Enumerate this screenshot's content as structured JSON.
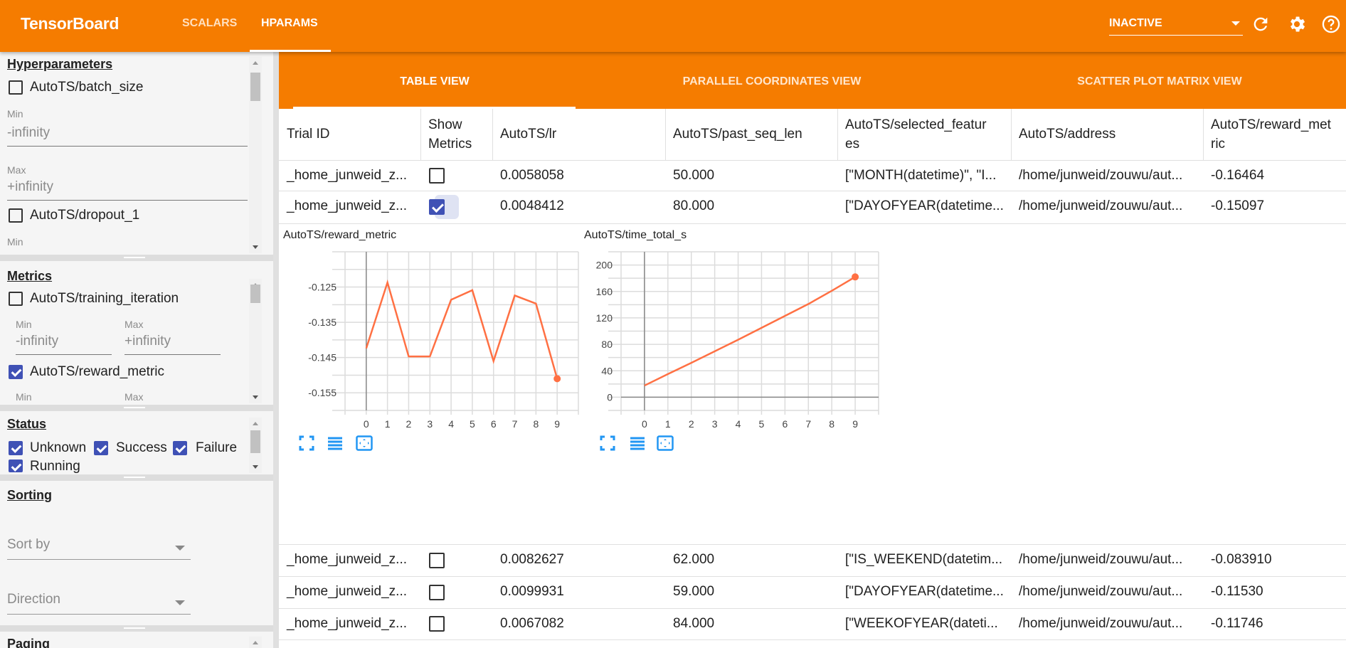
{
  "app": {
    "title": "TensorBoard",
    "nav": [
      {
        "label": "SCALARS"
      },
      {
        "label": "HPARAMS",
        "active": true
      }
    ],
    "run_select": "INACTIVE",
    "icons": [
      "refresh-icon",
      "settings-icon",
      "help-icon"
    ]
  },
  "colors": {
    "brand": "#f57c00",
    "checkbox": "#3f51b5",
    "series": "#ff7043",
    "tool_icons": "#2196f3"
  },
  "sidebar": {
    "hyperparameters": {
      "heading": "Hyperparameters",
      "items": [
        {
          "label": "AutoTS/batch_size",
          "checked": false,
          "min_label": "Min",
          "min_value": "-infinity",
          "max_label": "Max",
          "max_value": "+infinity"
        },
        {
          "label": "AutoTS/dropout_1",
          "checked": false,
          "min_label": "Min"
        }
      ]
    },
    "metrics": {
      "heading": "Metrics",
      "items": [
        {
          "label": "AutoTS/training_iteration",
          "checked": false,
          "min_label": "Min",
          "min_value": "-infinity",
          "max_label": "Max",
          "max_value": "+infinity"
        },
        {
          "label": "AutoTS/reward_metric",
          "checked": true,
          "min_label": "Min",
          "max_label": "Max"
        }
      ]
    },
    "status": {
      "heading": "Status",
      "items": [
        {
          "label": "Unknown",
          "checked": true
        },
        {
          "label": "Success",
          "checked": true
        },
        {
          "label": "Failure",
          "checked": true
        },
        {
          "label": "Running",
          "checked": true
        }
      ]
    },
    "sorting": {
      "heading": "Sorting",
      "sort_by": "Sort by",
      "direction": "Direction"
    },
    "paging": {
      "heading": "Paging"
    }
  },
  "subtabs": [
    {
      "label": "TABLE VIEW",
      "active": true
    },
    {
      "label": "PARALLEL COORDINATES VIEW"
    },
    {
      "label": "SCATTER PLOT MATRIX VIEW"
    }
  ],
  "table": {
    "headers": [
      "Trial ID",
      "Show\nMetrics",
      "AutoTS/lr",
      "AutoTS/past_seq_len",
      "AutoTS/selected_featur\nes",
      "AutoTS/address",
      "AutoTS/reward_met\nric"
    ],
    "rows": [
      {
        "trial": "_home_junweid_z...",
        "show": false,
        "lr": "0.0058058",
        "past_seq_len": "50.000",
        "features": "[\"MONTH(datetime)\", \"I...",
        "address": "/home/junweid/zouwu/aut...",
        "reward": "-0.16464"
      },
      {
        "trial": "_home_junweid_z...",
        "show": true,
        "lr": "0.0048412",
        "past_seq_len": "80.000",
        "features": "[\"DAYOFYEAR(datetime...",
        "address": "/home/junweid/zouwu/aut...",
        "reward": "-0.15097"
      },
      {
        "trial": "_home_junweid_z...",
        "show": false,
        "lr": "0.0082627",
        "past_seq_len": "62.000",
        "features": "[\"IS_WEEKEND(datetim...",
        "address": "/home/junweid/zouwu/aut...",
        "reward": "-0.083910"
      },
      {
        "trial": "_home_junweid_z...",
        "show": false,
        "lr": "0.0099931",
        "past_seq_len": "59.000",
        "features": "[\"DAYOFYEAR(datetime...",
        "address": "/home/junweid/zouwu/aut...",
        "reward": "-0.11530"
      },
      {
        "trial": "_home_junweid_z...",
        "show": false,
        "lr": "0.0067082",
        "past_seq_len": "84.000",
        "features": "[\"WEEKOFYEAR(dateti...",
        "address": "/home/junweid/zouwu/aut...",
        "reward": "-0.11746"
      }
    ]
  },
  "chart_data": [
    {
      "type": "line",
      "title": "AutoTS/reward_metric",
      "x": [
        0,
        1,
        2,
        3,
        4,
        5,
        6,
        7,
        8,
        9
      ],
      "series": [
        {
          "values": [
            -0.1424,
            -0.1237,
            -0.1447,
            -0.1447,
            -0.1286,
            -0.1259,
            -0.146,
            -0.1274,
            -0.1297,
            -0.151
          ]
        }
      ],
      "xlim": [
        -1,
        10
      ],
      "ylim": [
        -0.16,
        -0.115
      ],
      "x_ticks": [
        0,
        1,
        2,
        3,
        4,
        5,
        6,
        7,
        8,
        9
      ],
      "y_ticks": [
        -0.125,
        -0.135,
        -0.145,
        -0.155
      ],
      "y_tick_labels": [
        "-0.125",
        "-0.135",
        "-0.145",
        "-0.155"
      ],
      "grid": true,
      "x_grid_step": 1,
      "y_grid_step": 0.005
    },
    {
      "type": "line",
      "title": "AutoTS/time_total_s",
      "x": [
        0,
        1,
        2,
        3,
        4,
        5,
        6,
        7,
        8,
        9
      ],
      "series": [
        {
          "values": [
            17.6,
            35,
            52,
            69.5,
            87,
            105,
            123,
            141,
            161,
            182
          ]
        }
      ],
      "xlim": [
        -1,
        10
      ],
      "ylim": [
        -20,
        220
      ],
      "x_ticks": [
        0,
        1,
        2,
        3,
        4,
        5,
        6,
        7,
        8,
        9
      ],
      "y_ticks": [
        0,
        40,
        80,
        120,
        160,
        200
      ],
      "y_tick_labels": [
        "0",
        "40",
        "80",
        "120",
        "160",
        "200"
      ],
      "grid": true,
      "x_grid_step": 1,
      "y_grid_step": 20
    }
  ],
  "chart_tools": [
    "fullscreen-icon",
    "toggle-log-scale-icon",
    "fit-domain-icon"
  ]
}
